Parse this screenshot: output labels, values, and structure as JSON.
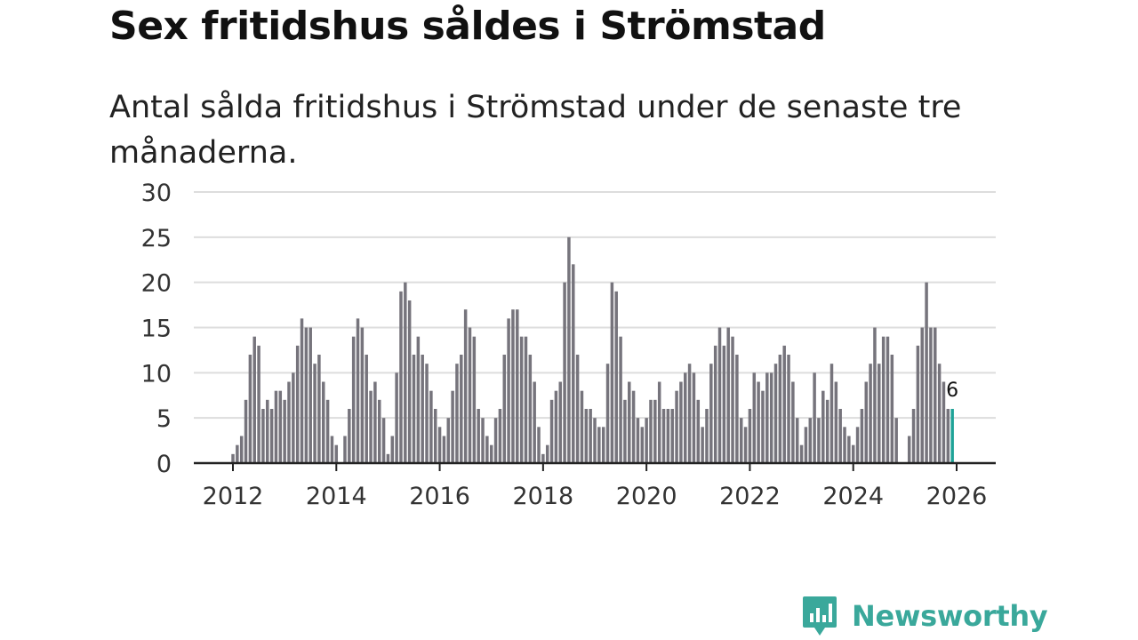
{
  "title": "Sex fritidshus såldes i Strömstad",
  "subtitle": "Antal sålda fritidshus i Strömstad under de senaste tre månaderna.",
  "brand": {
    "name": "Newsworthy",
    "icon": "newsworthy-logo-icon",
    "color": "#3aa89b"
  },
  "colors": {
    "bar": "#76747c",
    "highlight": "#1fa398",
    "grid": "#dddddd",
    "axis": "#222222"
  },
  "chart_data": {
    "type": "bar",
    "title": "Sex fritidshus såldes i Strömstad",
    "subtitle": "Antal sålda fritidshus i Strömstad under de senaste tre månaderna.",
    "xlabel": "",
    "ylabel": "",
    "ylim": [
      0,
      30
    ],
    "yticks": [
      0,
      5,
      10,
      15,
      20,
      25,
      30
    ],
    "xticks": [
      2012,
      2014,
      2016,
      2018,
      2020,
      2022,
      2024,
      2026
    ],
    "grid": true,
    "start_year": 2012,
    "start_month": 1,
    "highlight_label": "6",
    "values": [
      1,
      2,
      3,
      7,
      12,
      14,
      13,
      6,
      7,
      6,
      8,
      8,
      7,
      9,
      10,
      13,
      16,
      15,
      15,
      11,
      12,
      9,
      7,
      3,
      2,
      0,
      3,
      6,
      14,
      16,
      15,
      12,
      8,
      9,
      7,
      5,
      1,
      3,
      10,
      19,
      20,
      18,
      12,
      14,
      12,
      11,
      8,
      6,
      4,
      3,
      5,
      8,
      11,
      12,
      17,
      15,
      14,
      6,
      5,
      3,
      2,
      5,
      6,
      12,
      16,
      17,
      17,
      14,
      14,
      12,
      9,
      4,
      1,
      2,
      7,
      8,
      9,
      20,
      25,
      22,
      12,
      8,
      6,
      6,
      5,
      4,
      4,
      11,
      20,
      19,
      14,
      7,
      9,
      8,
      5,
      4,
      5,
      7,
      7,
      9,
      6,
      6,
      6,
      8,
      9,
      10,
      11,
      10,
      7,
      4,
      6,
      11,
      13,
      15,
      13,
      15,
      14,
      12,
      5,
      4,
      6,
      10,
      9,
      8,
      10,
      10,
      11,
      12,
      13,
      12,
      9,
      5,
      2,
      4,
      5,
      10,
      5,
      8,
      7,
      11,
      9,
      6,
      4,
      3,
      2,
      4,
      6,
      9,
      11,
      15,
      11,
      14,
      14,
      12,
      5,
      0,
      0,
      3,
      6,
      13,
      15,
      20,
      15,
      15,
      11,
      9,
      6,
      6
    ]
  }
}
